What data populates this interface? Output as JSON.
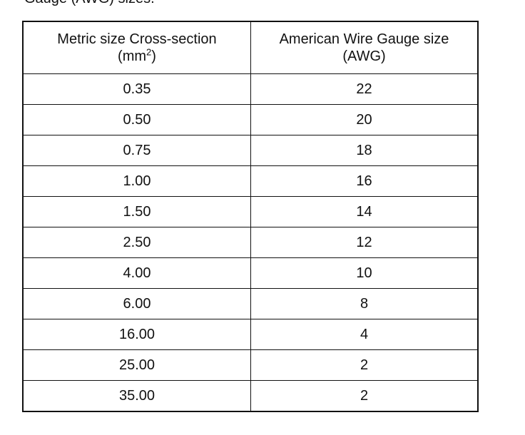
{
  "caption": "Gauge (AWG) sizes.",
  "table": {
    "header": {
      "metric": {
        "line1": "Metric size Cross-section",
        "line2_prefix": "(mm",
        "superscript": "2",
        "line2_suffix": ")"
      },
      "awg": {
        "line1": "American Wire Gauge size",
        "line2": "(AWG)"
      }
    },
    "rows": [
      [
        "0.35",
        22
      ],
      [
        "0.50",
        20
      ],
      [
        "0.75",
        18
      ],
      [
        "1.00",
        16
      ],
      [
        "1.50",
        14
      ],
      [
        "2.50",
        12
      ],
      [
        "4.00",
        10
      ],
      [
        "6.00",
        8
      ],
      [
        "16.00",
        4
      ],
      [
        "25.00",
        2
      ],
      [
        "35.00",
        2
      ]
    ]
  }
}
